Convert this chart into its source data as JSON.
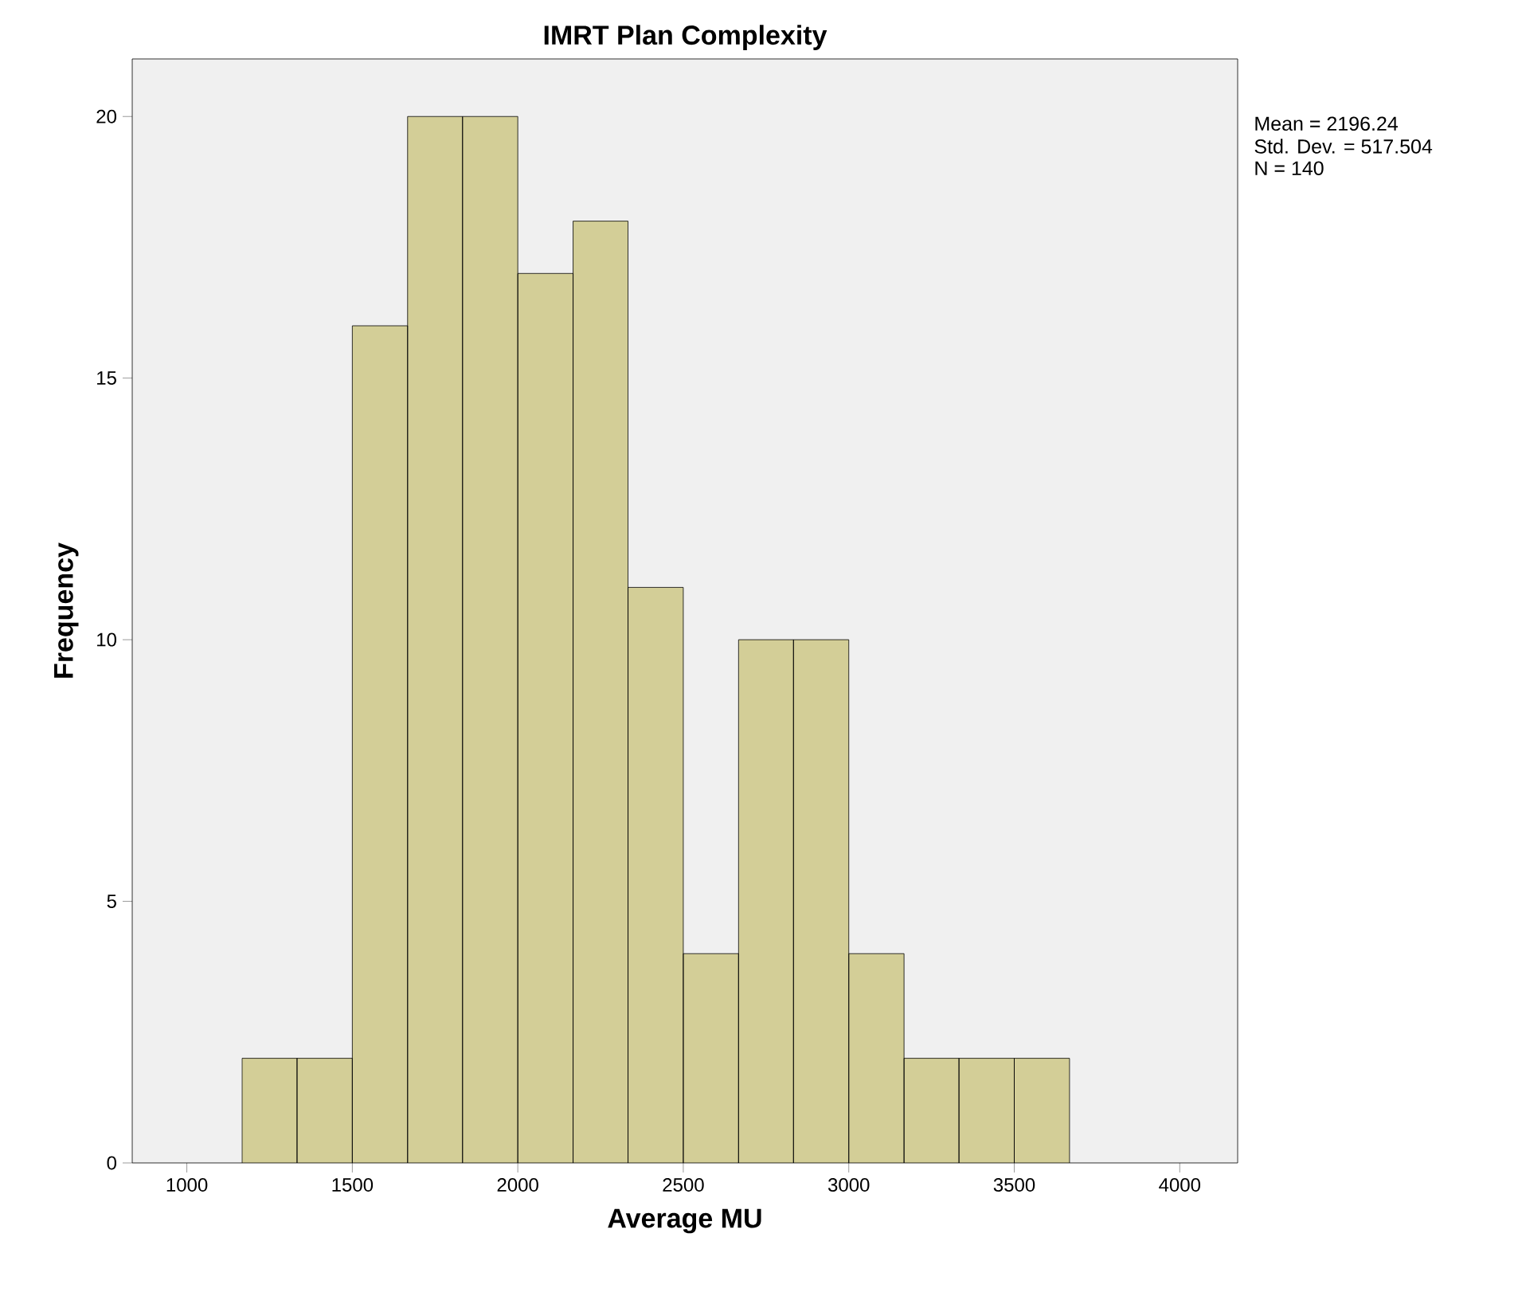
{
  "chart_data": {
    "type": "histogram",
    "title": "IMRT Plan Complexity",
    "xlabel": "Average MU",
    "ylabel": "Frequency",
    "bins": [
      1167,
      1333,
      1500,
      1667,
      1833,
      2000,
      2167,
      2333,
      2500,
      2667,
      2833,
      3000,
      3167,
      3333,
      3500,
      3667
    ],
    "values": [
      2,
      2,
      16,
      20,
      20,
      17,
      18,
      11,
      4,
      10,
      10,
      4,
      2,
      2,
      2
    ],
    "color": "#d3ce97",
    "xlim": [
      835,
      4175
    ],
    "ylim": [
      0,
      21.1
    ],
    "xticks": [
      1000,
      1500,
      2000,
      2500,
      3000,
      3500,
      4000
    ],
    "yticks": [
      0,
      5,
      10,
      15,
      20
    ],
    "annotations": [
      "Mean = 2196.24",
      "Std. Dev. = 517.504",
      "N = 140"
    ]
  }
}
